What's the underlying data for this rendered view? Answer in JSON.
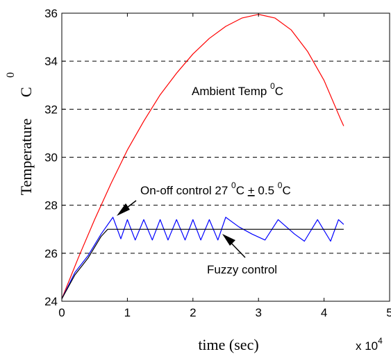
{
  "chart_data": {
    "type": "line",
    "xlabel": "time (sec)",
    "ylabel": "Temperature",
    "ylabel_sup": "0",
    "ylabel_unit": "C",
    "x_multiplier_label": "x 10",
    "x_multiplier_exp": "4",
    "xlim": [
      0,
      5
    ],
    "ylim": [
      24,
      36
    ],
    "xticks": [
      "0",
      "1",
      "2",
      "3",
      "4",
      "5"
    ],
    "yticks": [
      "24",
      "26",
      "28",
      "30",
      "32",
      "34",
      "36"
    ],
    "grid": "horizontal dashed",
    "annotations": {
      "ambient_main": "Ambient Temp ",
      "ambient_sup": "0",
      "ambient_unit": "C",
      "onoff_main": "On-off control 27 ",
      "onoff_sup1": "0",
      "onoff_c1": "C ",
      "onoff_pm": "+",
      "onoff_val": " 0.5 ",
      "onoff_sup2": "0",
      "onoff_c2": "C",
      "fuzzy": "Fuzzy control"
    },
    "series": [
      {
        "color": "#ff0000",
        "x": [
          0,
          0.25,
          0.5,
          0.75,
          1.0,
          1.25,
          1.5,
          1.75,
          2.0,
          2.25,
          2.5,
          2.75,
          3.0,
          3.25,
          3.5,
          3.75,
          4.0,
          4.25,
          4.3
        ],
        "values": [
          24.1,
          25.8,
          27.4,
          28.9,
          30.3,
          31.5,
          32.6,
          33.5,
          34.3,
          34.95,
          35.45,
          35.8,
          35.95,
          35.8,
          35.3,
          34.4,
          33.2,
          31.6,
          31.3
        ]
      },
      {
        "color": "#0000ff",
        "x": [
          0,
          0.2,
          0.4,
          0.6,
          0.78,
          0.9,
          1.0,
          1.12,
          1.25,
          1.38,
          1.5,
          1.62,
          1.75,
          1.88,
          2.0,
          2.12,
          2.25,
          2.38,
          2.5,
          2.7,
          2.9,
          3.1,
          3.3,
          3.55,
          3.7,
          3.9,
          4.1,
          4.22,
          4.3
        ],
        "values": [
          24.1,
          25.2,
          25.9,
          26.8,
          27.5,
          26.6,
          27.4,
          26.55,
          27.4,
          26.55,
          27.4,
          26.55,
          27.4,
          26.55,
          27.4,
          26.55,
          27.4,
          26.55,
          27.5,
          27.1,
          26.8,
          26.55,
          27.4,
          26.8,
          26.5,
          27.4,
          26.5,
          27.4,
          27.2
        ]
      },
      {
        "color": "#000000",
        "x": [
          0,
          0.2,
          0.4,
          0.6,
          0.7,
          0.8,
          1.0,
          2.0,
          3.0,
          4.0,
          4.3
        ],
        "values": [
          24.1,
          25.1,
          25.8,
          26.7,
          27.0,
          27.0,
          27.0,
          27.0,
          27.0,
          27.0,
          27.0
        ]
      }
    ]
  }
}
